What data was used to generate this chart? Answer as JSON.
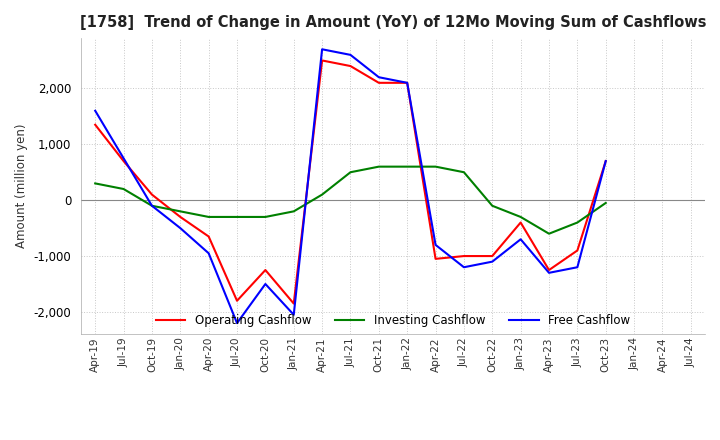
{
  "title": "[1758]  Trend of Change in Amount (YoY) of 12Mo Moving Sum of Cashflows",
  "ylabel": "Amount (million yen)",
  "ylim": [
    -2400,
    2900
  ],
  "yticks": [
    -2000,
    -1000,
    0,
    1000,
    2000
  ],
  "x_labels": [
    "Apr-19",
    "Jul-19",
    "Oct-19",
    "Jan-20",
    "Apr-20",
    "Jul-20",
    "Oct-20",
    "Jan-21",
    "Apr-21",
    "Jul-21",
    "Oct-21",
    "Jan-22",
    "Apr-22",
    "Jul-22",
    "Oct-22",
    "Jan-23",
    "Apr-23",
    "Jul-23",
    "Oct-23",
    "Jan-24",
    "Apr-24",
    "Jul-24"
  ],
  "operating": [
    1350,
    700,
    100,
    -300,
    -650,
    -1800,
    -1250,
    -1850,
    2500,
    2400,
    2100,
    2100,
    -1050,
    -1000,
    -1000,
    -400,
    -1250,
    -900,
    700,
    null,
    null,
    null
  ],
  "investing": [
    300,
    200,
    -100,
    -200,
    -300,
    -300,
    -300,
    -200,
    100,
    500,
    600,
    600,
    600,
    500,
    -100,
    -300,
    -600,
    -400,
    -50,
    null,
    null,
    null
  ],
  "free": [
    1600,
    750,
    -100,
    -500,
    -950,
    -2200,
    -1500,
    -2050,
    2700,
    2600,
    2200,
    2100,
    -800,
    -1200,
    -1100,
    -700,
    -1300,
    -1200,
    700,
    null,
    null,
    null
  ],
  "operating_color": "#ff0000",
  "investing_color": "#008000",
  "free_color": "#0000ff",
  "bg_color": "#ffffff",
  "grid_color": "#c8c8c8",
  "grid_style": "dotted"
}
